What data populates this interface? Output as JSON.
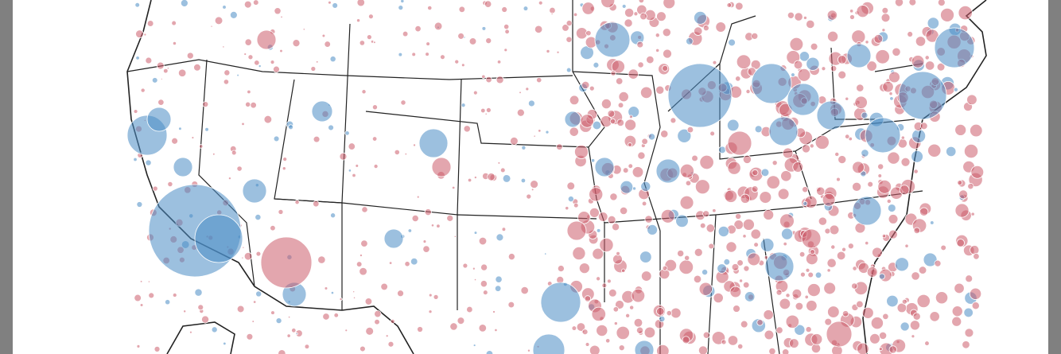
{
  "map": {
    "colors": [
      "#4a8cc4",
      "#cc5c6c"
    ]
  }
}
